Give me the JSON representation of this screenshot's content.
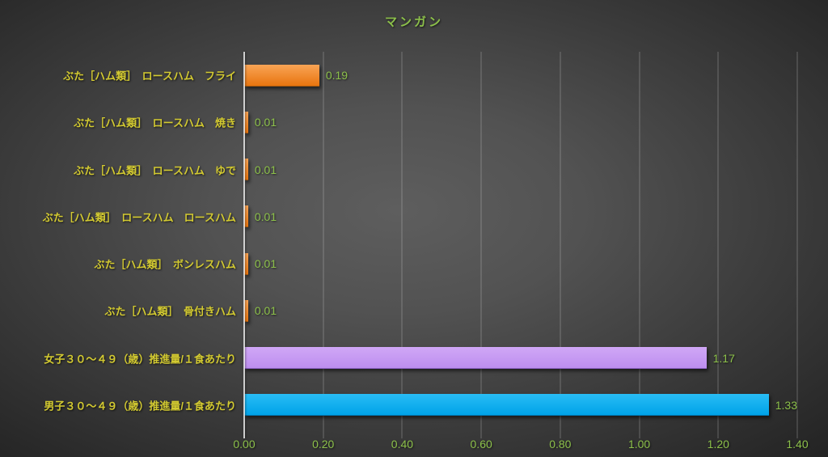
{
  "chart_data": {
    "type": "bar",
    "orientation": "horizontal",
    "title": "マンガン",
    "categories": [
      "ぶた［ハム類］　ロースハム　フライ",
      "ぶた［ハム類］　ロースハム　焼き",
      "ぶた［ハム類］　ロースハム　ゆで",
      "ぶた［ハム類］　ロースハム　ロースハム",
      "ぶた［ハム類］　ボンレスハム",
      "ぶた［ハム類］　骨付きハム",
      "女子３０～４９（歳）推進量/１食あたり",
      "男子３０～４９（歳）推進量/１食あたり"
    ],
    "values": [
      0.19,
      0.01,
      0.01,
      0.01,
      0.01,
      0.01,
      1.17,
      1.33
    ],
    "value_labels": [
      "0.19",
      "0.01",
      "0.01",
      "0.01",
      "0.01",
      "0.01",
      "1.17",
      "1.33"
    ],
    "bar_colors": [
      "orange",
      "orange",
      "orange",
      "orange",
      "orange",
      "orange",
      "purple",
      "blue"
    ],
    "bar_styles": {
      "orange": {
        "top": "#f9a455",
        "bottom": "#e8750f",
        "edge": "#a85a10"
      },
      "purple": {
        "top": "#d0a7f6",
        "bottom": "#bd8eef",
        "edge": "#8a60bf"
      },
      "blue": {
        "top": "#29bdf5",
        "bottom": "#00a3e8",
        "edge": "#0077b0"
      }
    },
    "xlim": [
      0,
      1.4
    ],
    "x_ticks": [
      "0.00",
      "0.20",
      "0.40",
      "0.60",
      "0.80",
      "1.00",
      "1.20",
      "1.40"
    ],
    "grid": true,
    "legend": "none"
  },
  "style": {
    "category_label_color": "#d3ca31",
    "value_label_color": "#8cc04a",
    "title_color": "#8cc04a",
    "background_center": "#5e5e5e",
    "background_edge": "#1f1f1f"
  }
}
